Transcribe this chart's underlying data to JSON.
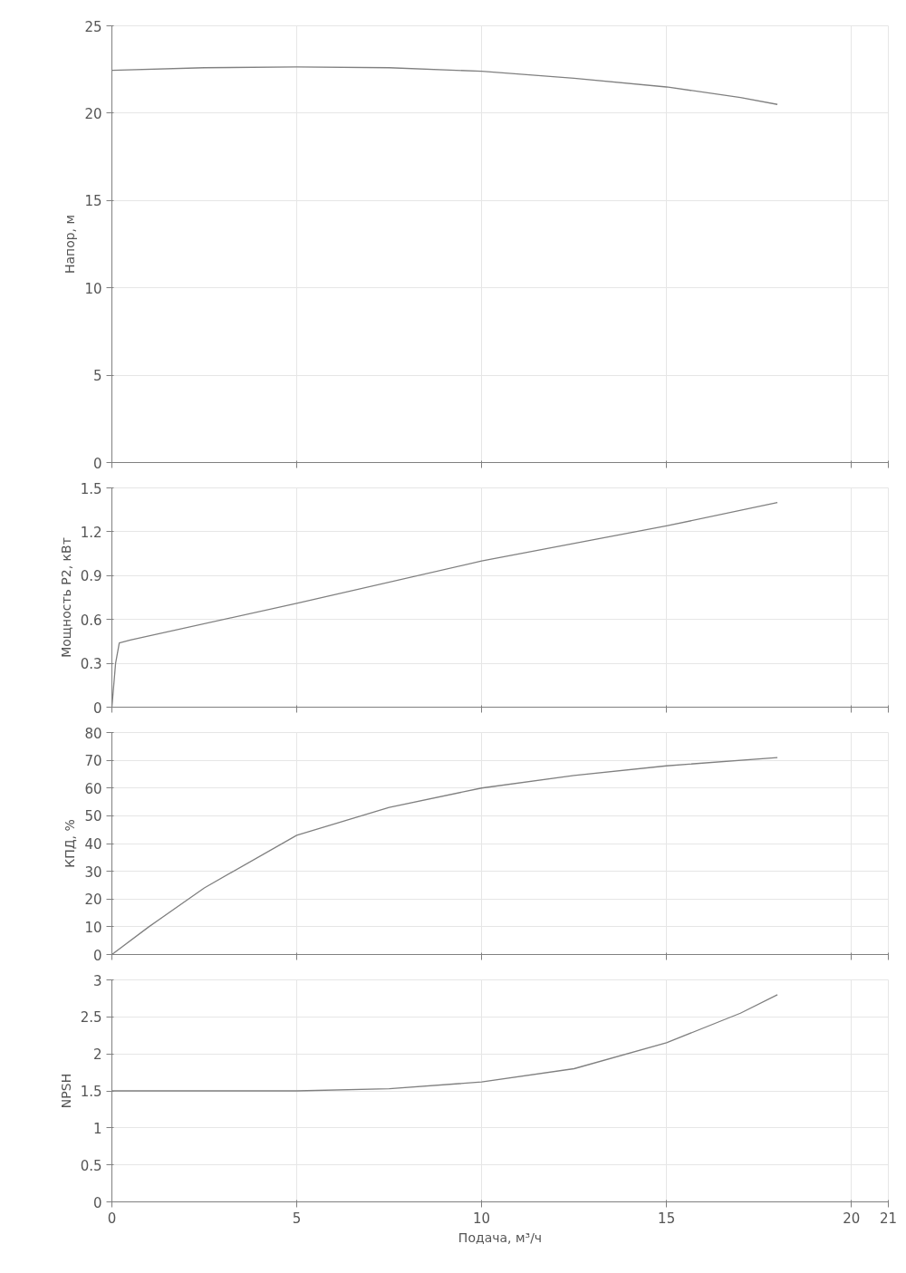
{
  "chart_data": [
    {
      "type": "line",
      "ylabel": "Напор, м",
      "x": [
        0,
        2.5,
        5,
        7.5,
        10,
        12.5,
        15,
        17,
        18
      ],
      "series": [
        {
          "color": "#808080",
          "values": [
            22.45,
            22.6,
            22.65,
            22.6,
            22.4,
            22.0,
            21.5,
            20.9,
            20.5
          ]
        }
      ],
      "xlim": [
        0,
        21
      ],
      "xticks": [
        0,
        5,
        10,
        15,
        20,
        21
      ],
      "ylim": [
        0,
        25
      ],
      "yticks": [
        0,
        5,
        10,
        15,
        20,
        25
      ],
      "grid": true,
      "tick_labels": "y"
    },
    {
      "type": "line",
      "ylabel": "Мощность Р2, кВт",
      "x": [
        0,
        0.1,
        0.2,
        0.5,
        5,
        10,
        15,
        18
      ],
      "series": [
        {
          "color": "#808080",
          "values": [
            0,
            0.3,
            0.44,
            0.46,
            0.71,
            1.0,
            1.24,
            1.4
          ]
        }
      ],
      "xlim": [
        0,
        21
      ],
      "xticks": [
        0,
        5,
        10,
        15,
        20,
        21
      ],
      "ylim": [
        0,
        1.5
      ],
      "yticks": [
        0,
        0.3,
        0.6,
        0.9,
        1.2,
        1.5
      ],
      "grid": true,
      "tick_labels": "y"
    },
    {
      "type": "line",
      "ylabel": "КПД, %",
      "x": [
        0,
        1,
        2.5,
        5,
        7.5,
        10,
        12.5,
        15,
        18
      ],
      "series": [
        {
          "color": "#808080",
          "values": [
            0,
            10,
            24,
            43,
            53,
            60,
            64.5,
            68,
            71
          ]
        }
      ],
      "xlim": [
        0,
        21
      ],
      "xticks": [
        0,
        5,
        10,
        15,
        20,
        21
      ],
      "ylim": [
        0,
        80
      ],
      "yticks": [
        0,
        10,
        20,
        30,
        40,
        50,
        60,
        70,
        80
      ],
      "grid": true,
      "tick_labels": "y"
    },
    {
      "type": "line",
      "ylabel": "NPSH",
      "xlabel": "Подача, м³/ч",
      "x": [
        0,
        2.5,
        5,
        7.5,
        10,
        12.5,
        15,
        17,
        18
      ],
      "series": [
        {
          "color": "#808080",
          "values": [
            1.5,
            1.5,
            1.5,
            1.53,
            1.62,
            1.8,
            2.15,
            2.55,
            2.8
          ]
        }
      ],
      "xlim": [
        0,
        21
      ],
      "xticks": [
        0,
        5,
        10,
        15,
        20,
        21
      ],
      "ylim": [
        0,
        3
      ],
      "yticks": [
        0,
        0.5,
        1,
        1.5,
        2,
        2.5,
        3
      ],
      "grid": true
    }
  ]
}
